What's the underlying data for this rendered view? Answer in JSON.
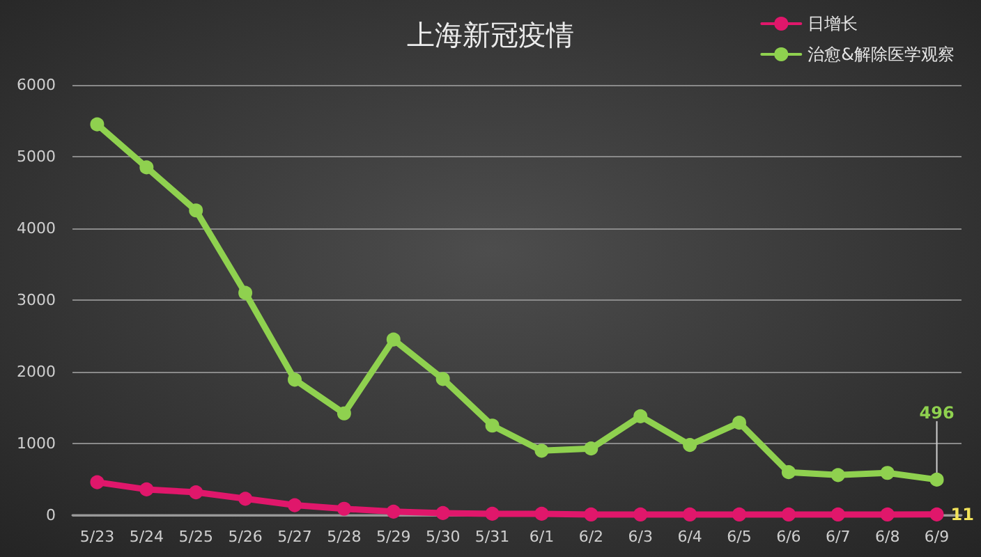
{
  "chart_data": {
    "type": "line",
    "title": "上海新冠疫情",
    "categories": [
      "5/23",
      "5/24",
      "5/25",
      "5/26",
      "5/27",
      "5/28",
      "5/29",
      "5/30",
      "5/31",
      "6/1",
      "6/2",
      "6/3",
      "6/4",
      "6/5",
      "6/6",
      "6/7",
      "6/8",
      "6/9"
    ],
    "series": [
      {
        "name": "日增长",
        "color": "#e0176b",
        "values": [
          460,
          360,
          320,
          230,
          140,
          90,
          50,
          30,
          20,
          20,
          10,
          10,
          10,
          10,
          10,
          10,
          10,
          11
        ],
        "value_labels": [
          null,
          null,
          null,
          null,
          null,
          null,
          null,
          null,
          null,
          null,
          null,
          null,
          null,
          null,
          null,
          null,
          null,
          "11"
        ]
      },
      {
        "name": "治愈&解除医学观察",
        "color": "#8fd14f",
        "values": [
          5450,
          4850,
          4250,
          3100,
          1890,
          1420,
          2450,
          1900,
          1250,
          900,
          930,
          1380,
          980,
          1290,
          600,
          560,
          590,
          496
        ],
        "value_labels": [
          null,
          null,
          null,
          null,
          null,
          null,
          null,
          null,
          null,
          null,
          null,
          null,
          null,
          null,
          null,
          null,
          null,
          "496"
        ]
      }
    ],
    "ylim": [
      0,
      6000
    ],
    "yticks": [
      0,
      1000,
      2000,
      3000,
      4000,
      5000,
      6000
    ],
    "grid": "y",
    "legend": "top right",
    "marker": "circle",
    "line_style": "solid"
  }
}
